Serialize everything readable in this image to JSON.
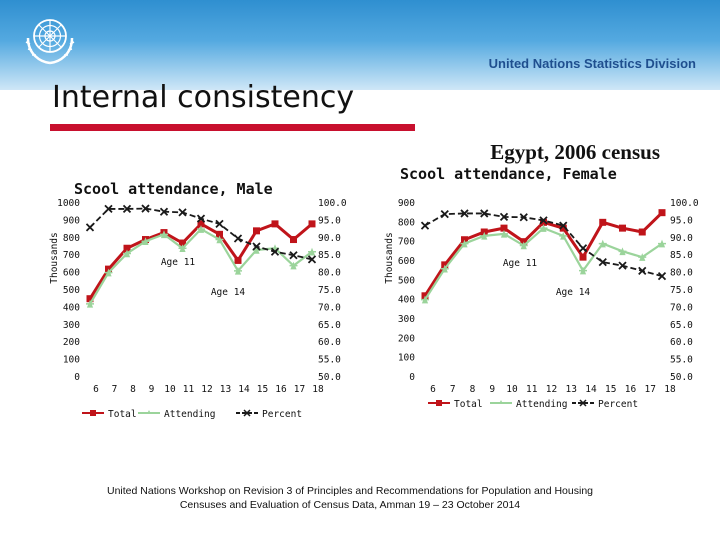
{
  "header": {
    "organization": "United Nations Statistics Division"
  },
  "slide": {
    "title": "Internal consistency",
    "subtitle": "Egypt, 2006 census"
  },
  "colors": {
    "total": "#c0141a",
    "attending": "#9bd49b",
    "percent": "#1a1a1a",
    "title_rule": "#c8102e"
  },
  "icons": {
    "logo": "un-emblem-icon"
  },
  "chart_data": [
    {
      "type": "line",
      "title": "Scool attendance, Male",
      "categories": [
        "6",
        "7",
        "8",
        "9",
        "10",
        "11",
        "12",
        "13",
        "14",
        "15",
        "16",
        "17",
        "18"
      ],
      "ylabel": "Thousands",
      "ylim": [
        0,
        1000
      ],
      "yticks": [
        "0",
        "100",
        "200",
        "300",
        "400",
        "500",
        "600",
        "700",
        "800",
        "900",
        "1000"
      ],
      "y2lim": [
        50,
        100
      ],
      "y2ticks": [
        "50.0",
        "55.0",
        "60.0",
        "65.0",
        "70.0",
        "75.0",
        "80.0",
        "85.0",
        "90.0",
        "95.0",
        "100.0"
      ],
      "series": [
        {
          "name": "Total",
          "axis": "left",
          "values": [
            450,
            620,
            740,
            790,
            830,
            770,
            880,
            820,
            670,
            840,
            880,
            790,
            880
          ]
        },
        {
          "name": "Attending",
          "axis": "left",
          "values": [
            420,
            600,
            710,
            780,
            820,
            740,
            850,
            790,
            610,
            730,
            740,
            640,
            720
          ]
        },
        {
          "name": "Percent",
          "axis": "right",
          "values": [
            93.0,
            98.3,
            98.3,
            98.4,
            97.5,
            97.3,
            95.5,
            94.0,
            89.8,
            87.5,
            86.0,
            85.0,
            83.8
          ]
        }
      ],
      "annotations": [
        "Age 11",
        "Age 14"
      ],
      "legend": [
        "Total",
        "Attending",
        "Percent"
      ],
      "legend_position": "bottom"
    },
    {
      "type": "line",
      "title": "Scool attendance, Female",
      "categories": [
        "6",
        "7",
        "8",
        "9",
        "10",
        "11",
        "12",
        "13",
        "14",
        "15",
        "16",
        "17",
        "18"
      ],
      "ylabel": "Thousands",
      "ylim": [
        0,
        900
      ],
      "yticks": [
        "0",
        "100",
        "200",
        "300",
        "400",
        "500",
        "600",
        "700",
        "800",
        "900"
      ],
      "y2lim": [
        50,
        100
      ],
      "y2ticks": [
        "50.0",
        "55.0",
        "60.0",
        "65.0",
        "70.0",
        "75.0",
        "80.0",
        "85.0",
        "90.0",
        "95.0",
        "100.0"
      ],
      "series": [
        {
          "name": "Total",
          "axis": "left",
          "values": [
            420,
            580,
            710,
            750,
            770,
            700,
            800,
            770,
            620,
            800,
            770,
            750,
            850
          ]
        },
        {
          "name": "Attending",
          "axis": "left",
          "values": [
            400,
            560,
            690,
            730,
            740,
            680,
            770,
            730,
            550,
            690,
            650,
            620,
            690
          ]
        },
        {
          "name": "Percent",
          "axis": "right",
          "values": [
            93.5,
            96.8,
            97.0,
            97.0,
            96.0,
            95.9,
            95.0,
            93.5,
            87.0,
            83.0,
            82.0,
            80.5,
            79.0
          ]
        }
      ],
      "annotations": [
        "Age 11",
        "Age 14"
      ],
      "legend": [
        "Total",
        "Attending",
        "Percent"
      ],
      "legend_position": "bottom"
    }
  ],
  "footer": {
    "line1": "United Nations Workshop on  Revision 3 of Principles and Recommendations for Population and Housing",
    "line2": "Censuses and Evaluation of Census Data, Amman 19 – 23 October 2014"
  }
}
